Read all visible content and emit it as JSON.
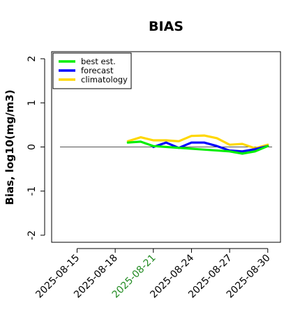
{
  "chart_data": {
    "type": "line",
    "title": "BIAS",
    "ylabel": "Bias, log10(mg/m3)",
    "xlabel": "",
    "xlim": [
      "2025-08-13",
      "2025-08-31"
    ],
    "ylim": [
      -2,
      2
    ],
    "x_ticks": [
      "2025-08-15",
      "2025-08-18",
      "2025-08-21",
      "2025-08-24",
      "2025-08-27",
      "2025-08-30"
    ],
    "x_tick_colors": [
      "#000000",
      "#000000",
      "#228B22",
      "#000000",
      "#000000",
      "#000000"
    ],
    "y_ticks": [
      -2,
      -1,
      0,
      1,
      2
    ],
    "reference_line": 0,
    "reference_span": [
      "2025-08-13",
      "2025-08-31"
    ],
    "legend": {
      "placement": "top-left"
    },
    "series": [
      {
        "name": "climatology",
        "color": "#FFD700",
        "points": [
          [
            "2025-08-19",
            0.13
          ],
          [
            "2025-08-20",
            0.22
          ],
          [
            "2025-08-21",
            0.15
          ],
          [
            "2025-08-22",
            0.15
          ],
          [
            "2025-08-23",
            0.13
          ],
          [
            "2025-08-24",
            0.25
          ],
          [
            "2025-08-25",
            0.26
          ],
          [
            "2025-08-26",
            0.2
          ],
          [
            "2025-08-27",
            0.05
          ],
          [
            "2025-08-28",
            0.07
          ],
          [
            "2025-08-29",
            -0.03
          ],
          [
            "2025-08-30",
            0.05
          ]
        ]
      },
      {
        "name": "forecast",
        "color": "#0000FF",
        "points": [
          [
            "2025-08-21",
            0.0
          ],
          [
            "2025-08-22",
            0.1
          ],
          [
            "2025-08-23",
            -0.02
          ],
          [
            "2025-08-24",
            0.1
          ],
          [
            "2025-08-25",
            0.1
          ],
          [
            "2025-08-26",
            0.02
          ],
          [
            "2025-08-27",
            -0.08
          ],
          [
            "2025-08-28",
            -0.1
          ],
          [
            "2025-08-29",
            -0.05
          ],
          [
            "2025-08-30",
            0.02
          ]
        ]
      },
      {
        "name": "best est.",
        "color": "#00EE00",
        "points": [
          [
            "2025-08-19",
            0.1
          ],
          [
            "2025-08-20",
            0.12
          ],
          [
            "2025-08-21",
            0.02
          ],
          [
            "2025-08-27",
            -0.1
          ],
          [
            "2025-08-28",
            -0.15
          ],
          [
            "2025-08-29",
            -0.1
          ],
          [
            "2025-08-30",
            0.02
          ]
        ]
      }
    ]
  }
}
